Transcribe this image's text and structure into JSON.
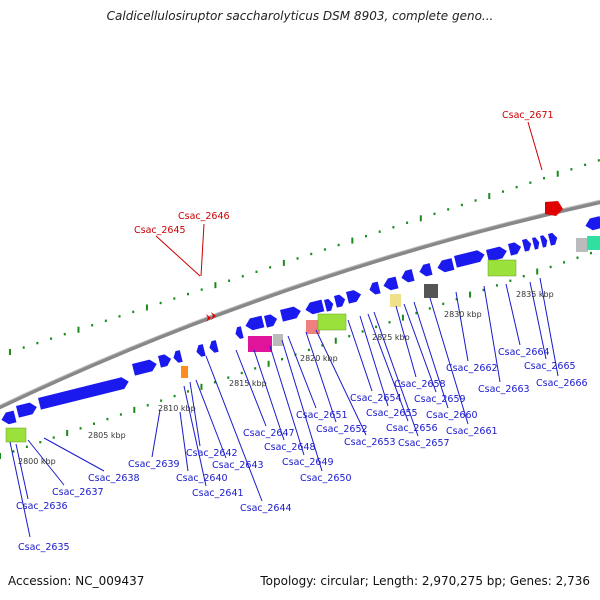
{
  "title": "Caldicellulosiruptor saccharolyticus DSM 8903, complete geno...",
  "footer": {
    "accession": "Accession: NC_009437",
    "topology": "Topology: circular; Length: 2,970,275 bp; Genes: 2,736"
  },
  "colors": {
    "gene_blue": "#1a1aee",
    "highlight_red": "#e00000",
    "label_blue": "#1a1acc",
    "label_red": "#cc0000",
    "tick_green": "#1a8a1a",
    "backbone": "#888888"
  },
  "tick_labels": [
    "2800 kbp",
    "2805 kbp",
    "2810 kbp",
    "2815 kbp",
    "2820 kbp",
    "2825 kbp",
    "2830 kbp",
    "2835 kbp"
  ],
  "gene_labels_top": [
    "Csac_2645",
    "Csac_2646",
    "Csac_2671"
  ],
  "gene_labels_bottom": [
    "Csac_2635",
    "Csac_2636",
    "Csac_2637",
    "Csac_2638",
    "Csac_2639",
    "Csac_2640",
    "Csac_2641",
    "Csac_2642",
    "Csac_2643",
    "Csac_2644",
    "Csac_2647",
    "Csac_2648",
    "Csac_2649",
    "Csac_2650",
    "Csac_2651",
    "Csac_2652",
    "Csac_2653",
    "Csac_2654",
    "Csac_2655",
    "Csac_2656",
    "Csac_2657",
    "Csac_2658",
    "Csac_2659",
    "Csac_2660",
    "Csac_2661",
    "Csac_2662",
    "Csac_2663",
    "Csac_2664",
    "Csac_2665",
    "Csac_2666"
  ]
}
